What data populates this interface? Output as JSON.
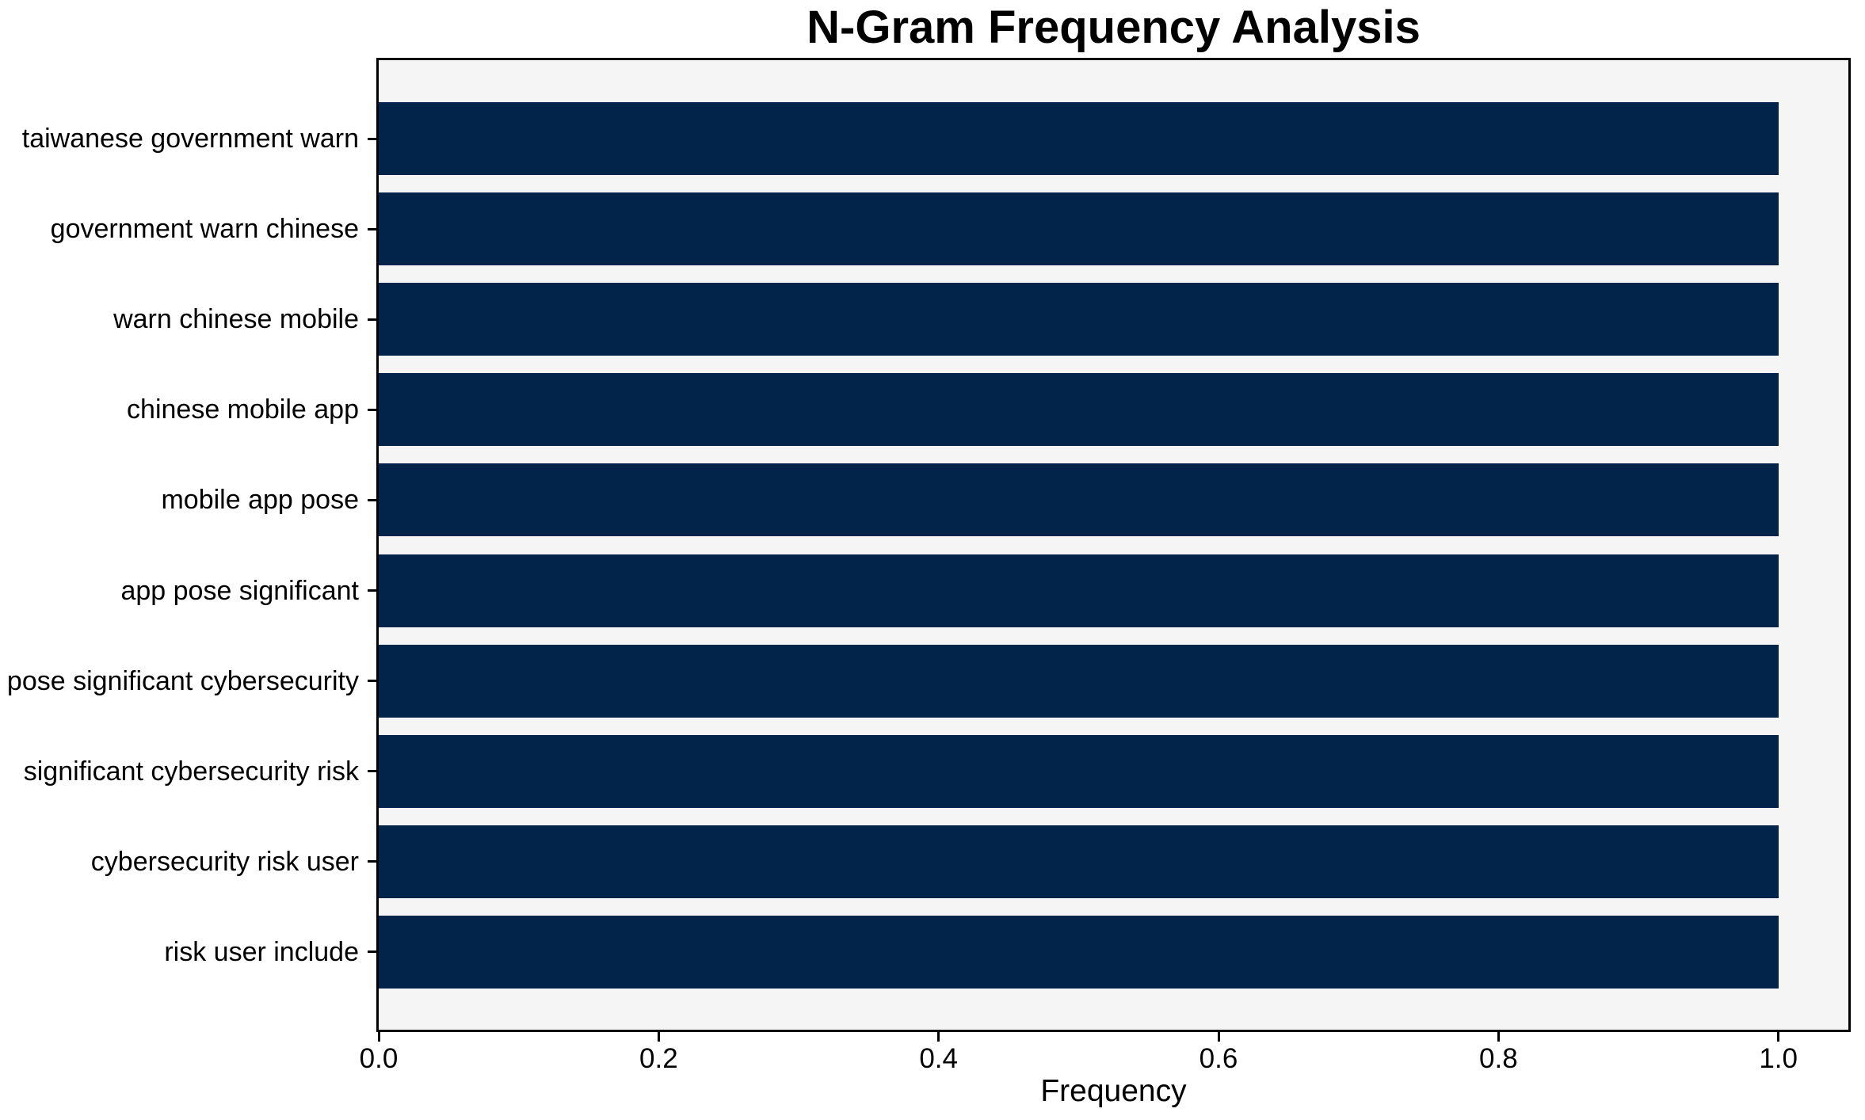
{
  "chart_data": {
    "type": "bar",
    "orientation": "horizontal",
    "title": "N-Gram Frequency Analysis",
    "xlabel": "Frequency",
    "ylabel": "",
    "categories": [
      "taiwanese government warn",
      "government warn chinese",
      "warn chinese mobile",
      "chinese mobile app",
      "mobile app pose",
      "app pose significant",
      "pose significant cybersecurity",
      "significant cybersecurity risk",
      "cybersecurity risk user",
      "risk user include"
    ],
    "values": [
      1.0,
      1.0,
      1.0,
      1.0,
      1.0,
      1.0,
      1.0,
      1.0,
      1.0,
      1.0
    ],
    "xlim": [
      0.0,
      1.05
    ],
    "xticks": [
      0.0,
      0.2,
      0.4,
      0.6,
      0.8,
      1.0
    ],
    "xtick_labels": [
      "0.0",
      "0.2",
      "0.4",
      "0.6",
      "0.8",
      "1.0"
    ],
    "grid": false,
    "legend": "none",
    "colors": {
      "bar": "#02234a",
      "plot_background": "#f5f5f5",
      "figure_background": "#ffffff",
      "spine": "#000000",
      "text": "#000000"
    }
  }
}
